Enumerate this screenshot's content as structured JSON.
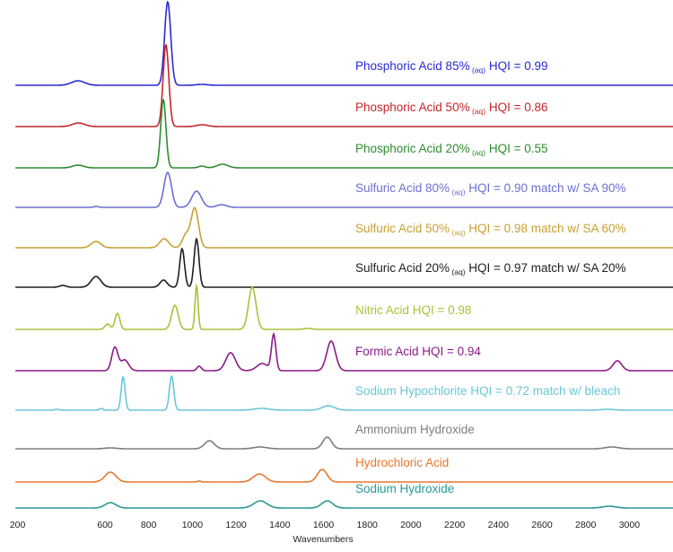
{
  "chart_data": {
    "type": "line",
    "title": "",
    "xlabel": "Wavenumbers",
    "ylabel": "",
    "xlim": [
      190,
      3220
    ],
    "xticks": [
      200,
      600,
      800,
      1000,
      1200,
      1400,
      1600,
      1800,
      2000,
      2200,
      2400,
      2600,
      2800,
      3000
    ],
    "grid": false,
    "layout": "stacked offset spectra, labels above each trace",
    "series": [
      {
        "name": "Phosphoric Acid 85%",
        "sub": "(aq)",
        "rest": " HQI = 0.99",
        "color": "#2a2ad4",
        "peaks": [
          [
            477,
            5,
            30
          ],
          [
            887,
            93,
            14
          ],
          [
            1043,
            1,
            25
          ]
        ]
      },
      {
        "name": "Phosphoric Acid 50%",
        "sub": "(aq)",
        "rest": " HQI = 0.86",
        "color": "#c4262c",
        "peaks": [
          [
            479,
            4,
            28
          ],
          [
            879,
            91,
            13
          ],
          [
            1045,
            2,
            25
          ]
        ]
      },
      {
        "name": "Phosphoric Acid 20%",
        "sub": "(aq)",
        "rest": " HQI = 0.55",
        "color": "#2e8c2e",
        "peaks": [
          [
            477,
            3,
            25
          ],
          [
            867,
            76,
            12
          ],
          [
            1043,
            2,
            15
          ],
          [
            1138,
            4,
            25
          ]
        ]
      },
      {
        "name": "Sulfuric Acid 80%",
        "sub": "(aq)",
        "rest": " HQI = 0.90 match w/ SA 90%",
        "color": "#6e6ed2",
        "peaks": [
          [
            560,
            1,
            10
          ],
          [
            887,
            39,
            17
          ],
          [
            1019,
            18,
            22
          ],
          [
            1134,
            3,
            22
          ]
        ]
      },
      {
        "name": "Sulfuric Acid 50%",
        "sub": "(aq)",
        "rest": " HQI = 0.98 match w/ SA 60%",
        "color": "#c9a032",
        "peaks": [
          [
            559,
            7,
            22
          ],
          [
            871,
            10,
            20
          ],
          [
            970,
            14,
            16
          ],
          [
            1011,
            44,
            17
          ]
        ]
      },
      {
        "name": "Sulfuric Acid 20%",
        "sub": "(aq)",
        "rest": " HQI = 0.97 match w/ SA 20%",
        "color": "#1e1e1e",
        "peaks": [
          [
            407,
            2,
            15
          ],
          [
            559,
            12,
            22
          ],
          [
            868,
            8,
            16
          ],
          [
            953,
            43,
            11
          ],
          [
            1019,
            54,
            11
          ]
        ]
      },
      {
        "name": "Nitric Acid HQI = 0.98",
        "sub": "",
        "rest": "",
        "color": "#a6c43a",
        "peaks": [
          [
            612,
            6,
            12
          ],
          [
            657,
            18,
            11
          ],
          [
            920,
            27,
            15
          ],
          [
            1019,
            49,
            7
          ],
          [
            1274,
            47,
            17
          ],
          [
            1528,
            1,
            20
          ]
        ]
      },
      {
        "name": "Formic Acid HQI = 0.94",
        "sub": "",
        "rest": "",
        "color": "#8a1a88",
        "peaks": [
          [
            645,
            26,
            14
          ],
          [
            690,
            12,
            18
          ],
          [
            1031,
            5,
            10
          ],
          [
            1175,
            20,
            22
          ],
          [
            1320,
            8,
            25
          ],
          [
            1372,
            40,
            10
          ],
          [
            1635,
            33,
            20
          ],
          [
            2945,
            11,
            20
          ]
        ]
      },
      {
        "name": "Sodium Hypochlorite HQI = 0.72 match w/ bleach",
        "sub": "",
        "rest": "",
        "color": "#6ac6d8",
        "peaks": [
          [
            380,
            1,
            10
          ],
          [
            583,
            2,
            8
          ],
          [
            683,
            37,
            9
          ],
          [
            905,
            38,
            10
          ],
          [
            1317,
            2,
            35
          ],
          [
            1622,
            5,
            28
          ],
          [
            2900,
            1,
            30
          ]
        ]
      },
      {
        "name": "Ammonium Hydroxide",
        "sub": "",
        "rest": "",
        "color": "#7e7e7e",
        "peaks": [
          [
            625,
            1,
            25
          ],
          [
            1078,
            9,
            22
          ],
          [
            1310,
            2,
            30
          ],
          [
            1617,
            13,
            20
          ],
          [
            2920,
            2,
            30
          ]
        ]
      },
      {
        "name": "Hydrochloric Acid",
        "sub": "",
        "rest": "",
        "color": "#e8772e",
        "peaks": [
          [
            625,
            11,
            25
          ],
          [
            1031,
            1,
            8
          ],
          [
            1307,
            9,
            28
          ],
          [
            1594,
            14,
            22
          ]
        ]
      },
      {
        "name": "Sodium Hydroxide",
        "sub": "",
        "rest": "",
        "color": "#2a9898",
        "peaks": [
          [
            625,
            6,
            25
          ],
          [
            1311,
            8,
            30
          ],
          [
            1617,
            8,
            25
          ],
          [
            2908,
            2,
            30
          ]
        ]
      }
    ]
  }
}
